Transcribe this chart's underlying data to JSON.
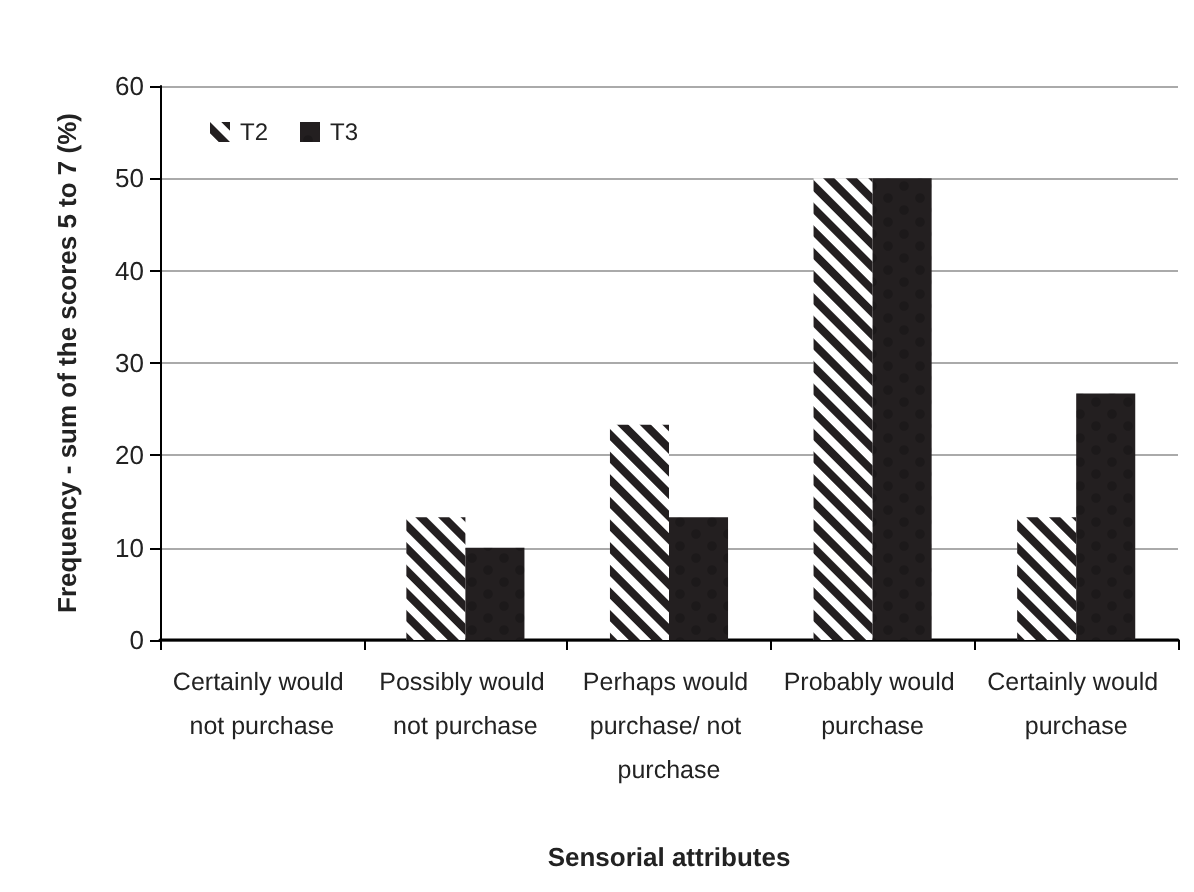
{
  "chart_data": {
    "type": "bar",
    "xlabel": "Sensorial attributes",
    "ylabel": "Frequency - sum of the scores 5 to 7 (%)",
    "categories": [
      "Certainly would not purchase",
      "Possibly would not purchase",
      "Perhaps would purchase/ not purchase",
      "Probably would purchase",
      "Certainly would purchase"
    ],
    "series": [
      {
        "name": "T2",
        "color": "#231f20",
        "values": [
          0,
          13.3,
          23.3,
          50,
          13.3
        ]
      },
      {
        "name": "T3",
        "color": "#231f20",
        "values": [
          0,
          10,
          13.3,
          50,
          26.7
        ]
      }
    ],
    "ylim": [
      0,
      60
    ],
    "yticks": [
      0,
      10,
      20,
      30,
      40,
      50,
      60
    ],
    "grid": "y",
    "legend": "top left"
  }
}
